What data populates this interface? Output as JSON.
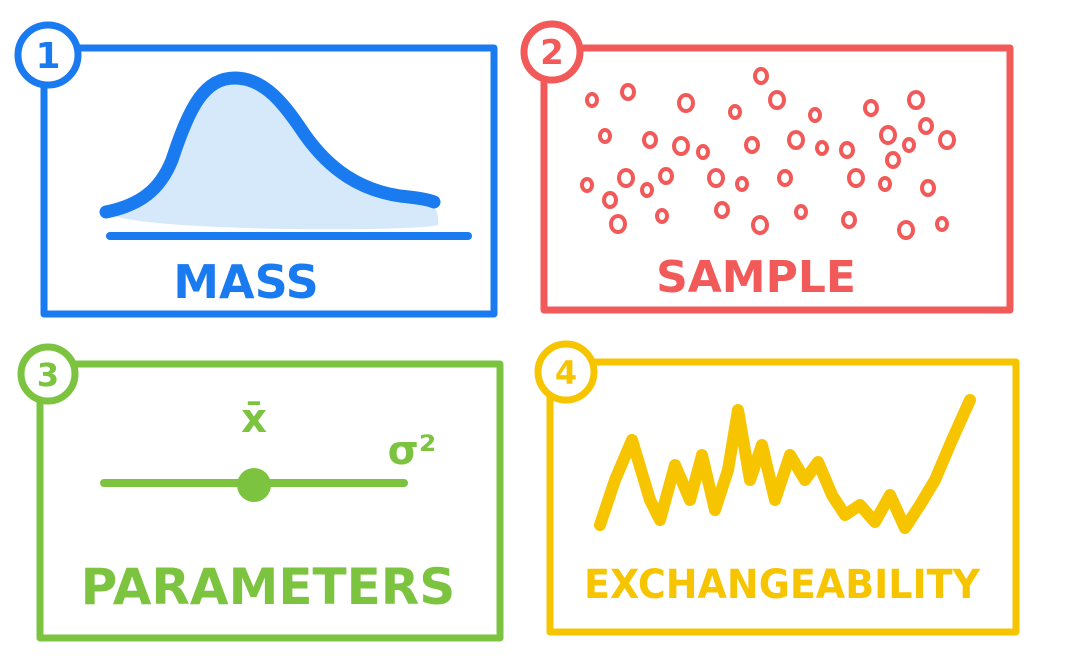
{
  "panels": [
    {
      "number": "1",
      "label": "MASS",
      "color": "#1a7bf0",
      "fill": "#d6e9fb"
    },
    {
      "number": "2",
      "label": "SAMPLE",
      "color": "#f25a5a"
    },
    {
      "number": "3",
      "label": "PARAMETERS",
      "color": "#7cc440",
      "mean_symbol": "x̄",
      "variance_symbol": "σ²"
    },
    {
      "number": "4",
      "label": "EXCHANGEABILITY",
      "color": "#f7c500"
    }
  ]
}
